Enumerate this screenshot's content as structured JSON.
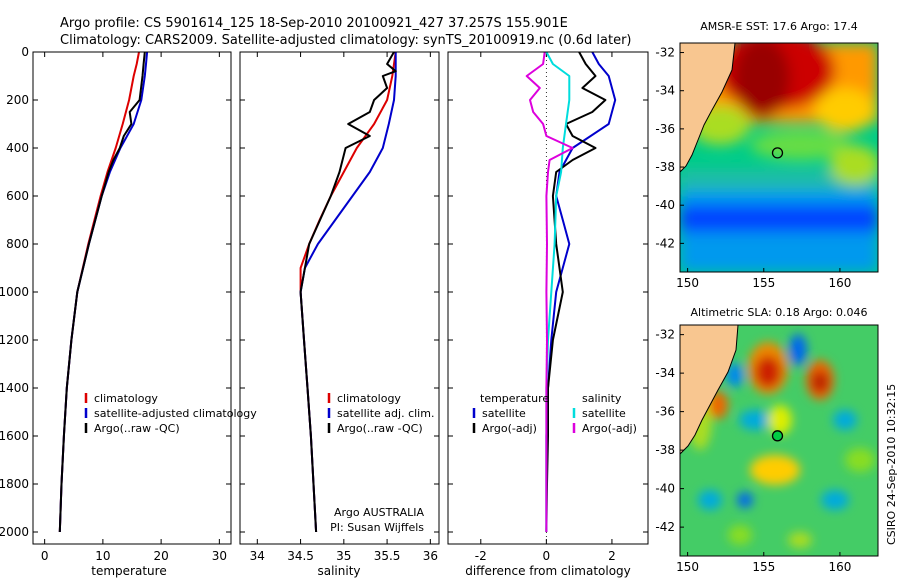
{
  "header": {
    "line1": "Argo profile: CS 5901614_125 18-Sep-2010 20100921_427 37.257S 155.901E",
    "line2": "Climatology: CARS2009. Satellite-adjusted climatology: synTS_20100919.nc (0.6d later)"
  },
  "footer": {
    "argo_label": "Argo AUSTRALIA",
    "pi_label": "PI: Susan Wijffels",
    "stamp": "CSIRO 24-Sep-2010 10:32:15"
  },
  "chart_data": [
    {
      "type": "line",
      "id": "temperature",
      "xlabel": "temperature",
      "ylabel": "",
      "xlim": [
        -2,
        32
      ],
      "ylim": [
        2050,
        0
      ],
      "xticks": [
        0,
        10,
        20,
        30
      ],
      "yticks": [
        0,
        200,
        400,
        600,
        800,
        1000,
        1200,
        1400,
        1600,
        1800,
        2000
      ],
      "legend": [
        "climatology",
        "satellite-adjusted climatology",
        "Argo(..raw -QC)"
      ],
      "legend_position": "lower-right",
      "series": [
        {
          "name": "climatology",
          "color": "#dd0000",
          "depth": [
            0,
            50,
            100,
            200,
            300,
            400,
            500,
            600,
            800,
            1000,
            1200,
            1400,
            1600,
            1800,
            2000
          ],
          "values": [
            16.2,
            15.8,
            15.3,
            14.5,
            13.4,
            12.2,
            10.8,
            9.6,
            7.5,
            5.6,
            4.6,
            3.8,
            3.3,
            2.9,
            2.6
          ]
        },
        {
          "name": "satellite-adjusted climatology",
          "color": "#0000cc",
          "depth": [
            0,
            50,
            100,
            200,
            300,
            400,
            500,
            600,
            800,
            1000,
            1200,
            1400,
            1600,
            1800,
            2000
          ],
          "values": [
            17.6,
            17.4,
            17.2,
            16.6,
            15.3,
            13.0,
            11.2,
            9.8,
            7.6,
            5.6,
            4.6,
            3.8,
            3.3,
            2.9,
            2.6
          ]
        },
        {
          "name": "Argo(..raw -QC)",
          "color": "#000000",
          "depth": [
            0,
            50,
            100,
            200,
            250,
            300,
            350,
            400,
            450,
            500,
            600,
            800,
            1000,
            1200,
            1400,
            1600,
            1800,
            2000
          ],
          "values": [
            17.2,
            17.0,
            16.8,
            16.3,
            14.6,
            14.9,
            13.6,
            12.9,
            11.8,
            11.0,
            9.8,
            7.6,
            5.6,
            4.6,
            3.8,
            3.3,
            2.9,
            2.6
          ]
        }
      ]
    },
    {
      "type": "line",
      "id": "salinity",
      "xlabel": "salinity",
      "ylabel": "",
      "xlim": [
        33.8,
        36.1
      ],
      "ylim": [
        2050,
        0
      ],
      "xticks": [
        34,
        34.5,
        35,
        35.5,
        36
      ],
      "legend": [
        "climatology",
        "satellite adj. clim.",
        "Argo(..raw -QC)"
      ],
      "legend_position": "lower-right",
      "series": [
        {
          "name": "climatology",
          "color": "#dd0000",
          "depth": [
            0,
            100,
            200,
            300,
            400,
            500,
            600,
            700,
            800,
            900,
            1000,
            1200,
            1400,
            1600,
            1800,
            2000
          ],
          "values": [
            35.6,
            35.56,
            35.5,
            35.35,
            35.15,
            35.0,
            34.85,
            34.72,
            34.6,
            34.5,
            34.5,
            34.54,
            34.58,
            34.62,
            34.65,
            34.68
          ]
        },
        {
          "name": "satellite adj. clim.",
          "color": "#0000cc",
          "depth": [
            0,
            100,
            200,
            300,
            400,
            500,
            600,
            700,
            800,
            900,
            1000,
            1200,
            1400,
            1600,
            1800,
            2000
          ],
          "values": [
            35.6,
            35.6,
            35.58,
            35.52,
            35.45,
            35.3,
            35.1,
            34.9,
            34.7,
            34.55,
            34.5,
            34.54,
            34.58,
            34.62,
            34.65,
            34.68
          ]
        },
        {
          "name": "Argo(..raw -QC)",
          "color": "#000000",
          "depth": [
            0,
            50,
            80,
            100,
            150,
            200,
            250,
            300,
            350,
            400,
            500,
            600,
            800,
            1000,
            1200,
            1400,
            1600,
            1800,
            2000
          ],
          "values": [
            35.58,
            35.5,
            35.6,
            35.45,
            35.5,
            35.35,
            35.3,
            35.05,
            35.3,
            35.02,
            34.95,
            34.85,
            34.6,
            34.5,
            34.54,
            34.58,
            34.62,
            34.65,
            34.68
          ]
        }
      ]
    },
    {
      "type": "line",
      "id": "difference",
      "xlabel": "difference from climatology",
      "ylabel": "",
      "xlim": [
        -3,
        3.1
      ],
      "ylim": [
        2050,
        0
      ],
      "xticks": [
        -2,
        0,
        2
      ],
      "legend_temperature_header": "temperature",
      "legend_salinity_header": "salinity",
      "legend": [
        "satellite",
        "Argo(-adj)",
        "satellite",
        "Argo(-adj)"
      ],
      "legend_position": "lower-right",
      "series": [
        {
          "name": "temperature satellite",
          "color": "#0000cc",
          "depth": [
            0,
            50,
            100,
            200,
            300,
            400,
            500,
            600,
            700,
            800,
            1000,
            1200,
            1400,
            1600,
            1800,
            2000
          ],
          "values": [
            1.4,
            1.6,
            1.9,
            2.1,
            1.9,
            0.8,
            0.4,
            0.3,
            0.5,
            0.7,
            0.3,
            0.15,
            0.05,
            0.0,
            0.0,
            0.0
          ]
        },
        {
          "name": "temperature Argo(-adj)",
          "color": "#000000",
          "depth": [
            0,
            50,
            100,
            150,
            200,
            250,
            300,
            350,
            400,
            450,
            500,
            600,
            800,
            1000,
            1200,
            1400,
            1600,
            1800,
            2000
          ],
          "values": [
            1.0,
            1.2,
            1.5,
            1.1,
            1.8,
            1.4,
            0.6,
            0.8,
            1.5,
            0.8,
            0.3,
            0.2,
            0.3,
            0.5,
            0.2,
            0.05,
            0.05,
            0.02,
            0.0
          ]
        },
        {
          "name": "salinity satellite",
          "color": "#00dddd",
          "depth": [
            0,
            50,
            100,
            200,
            300,
            400,
            500,
            600,
            800,
            1000,
            1200,
            1400,
            1600,
            1800,
            2000
          ],
          "values": [
            0.0,
            0.2,
            0.7,
            0.7,
            0.6,
            0.5,
            0.45,
            0.3,
            0.25,
            0.15,
            0.05,
            0.0,
            0.0,
            0.0,
            0.0
          ]
        },
        {
          "name": "salinity Argo(-adj)",
          "color": "#dd00dd",
          "depth": [
            0,
            50,
            100,
            150,
            200,
            250,
            300,
            350,
            400,
            450,
            500,
            600,
            800,
            1000,
            1200,
            1400,
            1600,
            1800,
            2000
          ],
          "values": [
            -0.05,
            -0.1,
            -0.6,
            -0.2,
            -0.5,
            -0.4,
            -0.1,
            0.0,
            0.8,
            0.1,
            0.05,
            0.0,
            0.02,
            0.0,
            0.02,
            0.0,
            0.0,
            0.0,
            0.0
          ]
        }
      ]
    },
    {
      "type": "heatmap",
      "id": "sst_map",
      "title": "AMSR-E SST: 17.6 Argo: 17.4",
      "xlim": [
        149.5,
        162.5
      ],
      "ylim": [
        -43.5,
        -31.5
      ],
      "xticks": [
        150,
        155,
        160
      ],
      "yticks": [
        -32,
        -34,
        -36,
        -38,
        -40,
        -42
      ],
      "float_position": {
        "lon": 155.901,
        "lat": -37.257
      }
    },
    {
      "type": "heatmap",
      "id": "sla_map",
      "title": "Altimetric SLA: 0.18 Argo: 0.046",
      "xlim": [
        149.5,
        162.5
      ],
      "ylim": [
        -43.5,
        -31.5
      ],
      "xticks": [
        150,
        155,
        160
      ],
      "yticks": [
        -32,
        -34,
        -36,
        -38,
        -40,
        -42
      ],
      "float_position": {
        "lon": 155.901,
        "lat": -37.257
      }
    }
  ]
}
